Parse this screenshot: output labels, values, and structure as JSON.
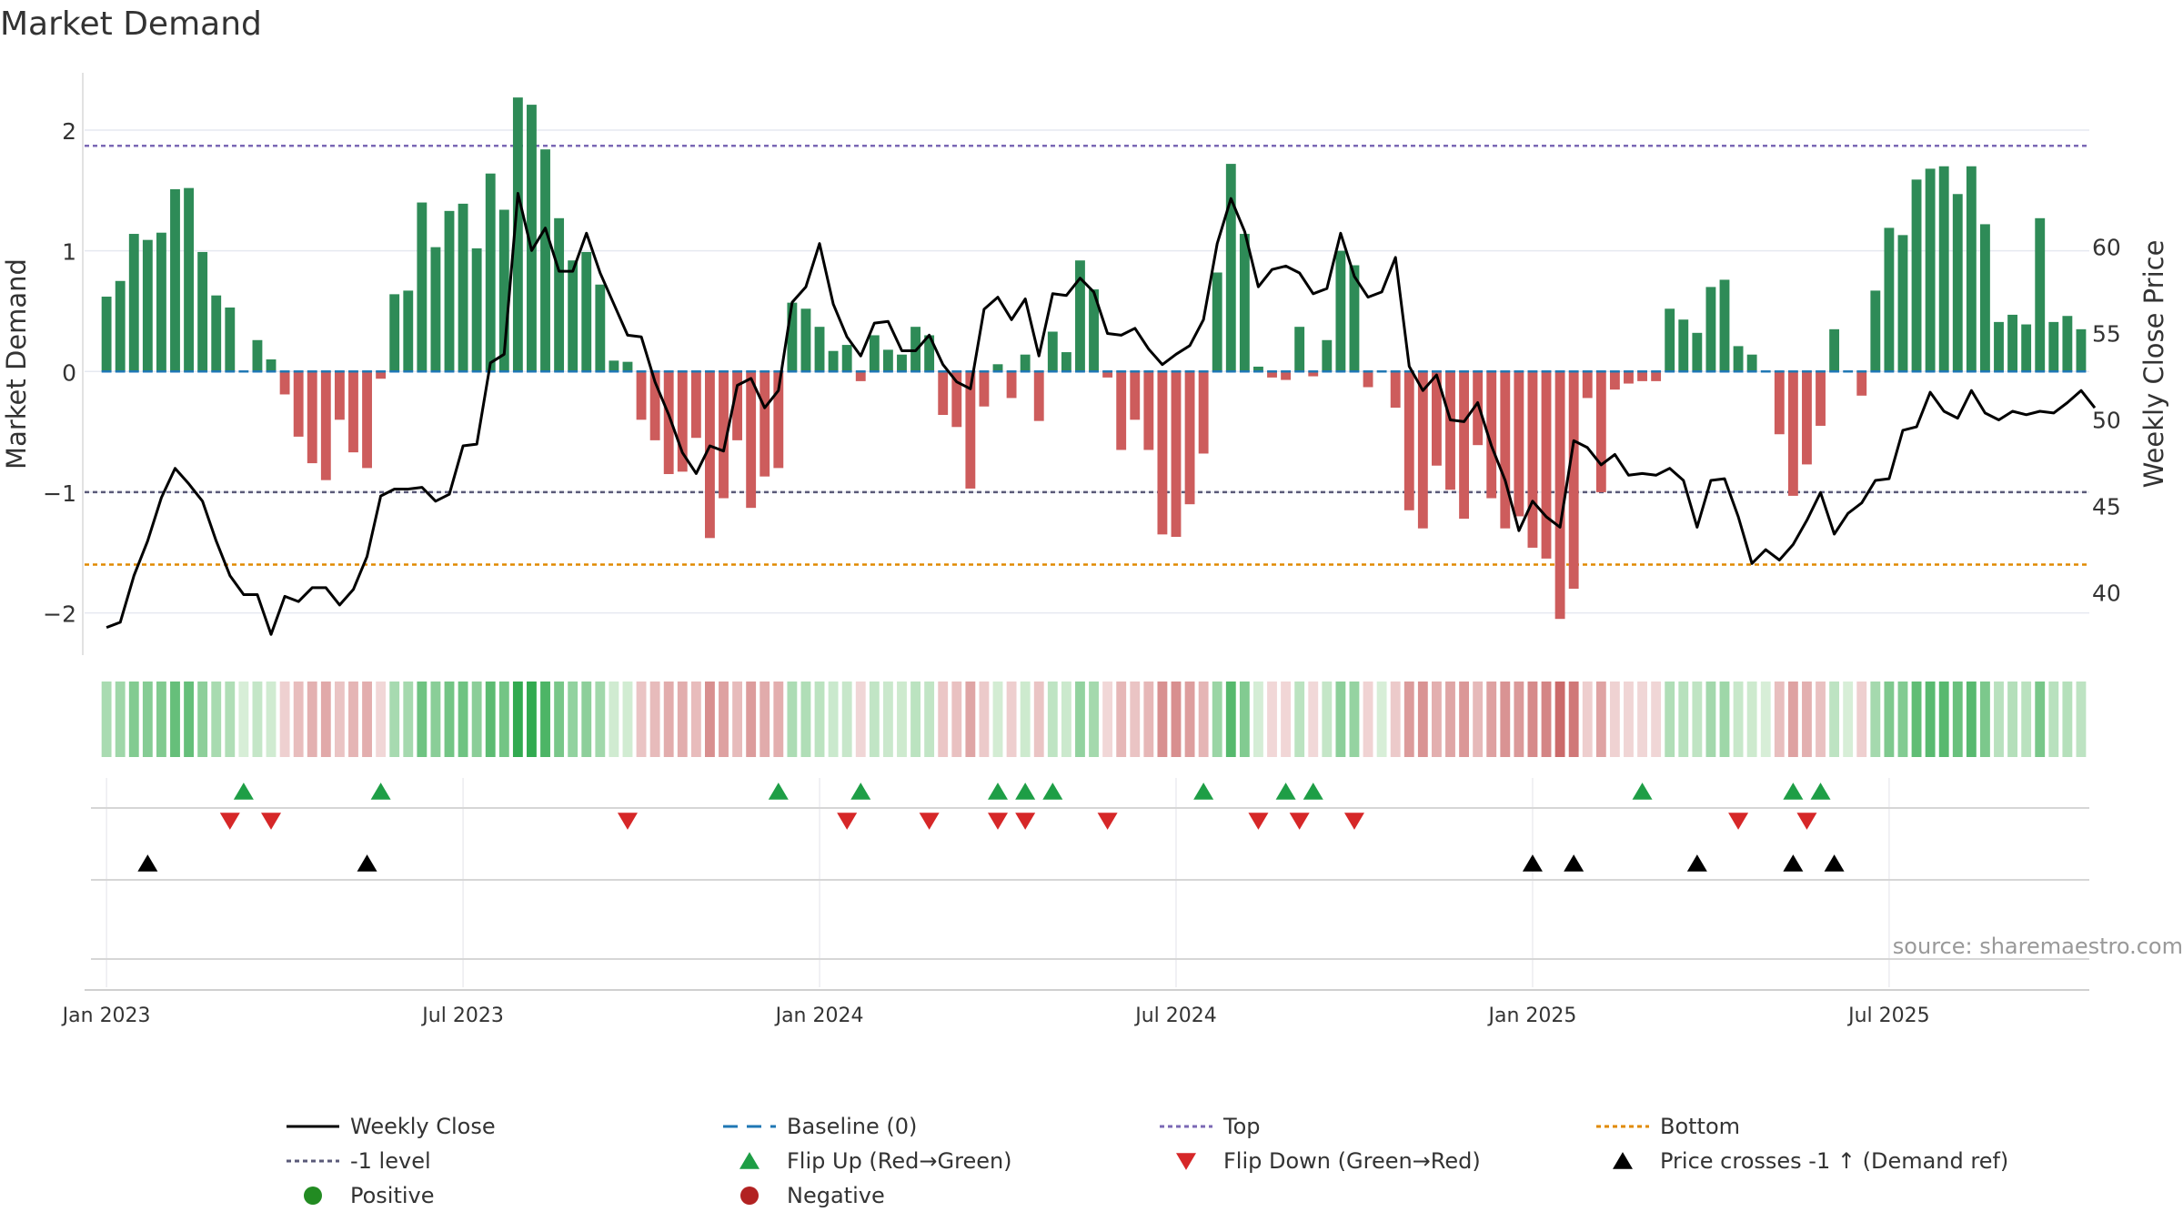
{
  "chart_data": {
    "type": "bar",
    "title": "Market Demand",
    "ylabel_left": "Market Demand",
    "ylabel_right": "Weekly Close Price",
    "ylim_left": [
      -2.35,
      2.55
    ],
    "ylim_right": [
      36.4,
      70.6
    ],
    "yticks_left": [
      2,
      1,
      0,
      -1,
      -2
    ],
    "ytick_labels_left": [
      "2",
      "1",
      "0",
      "−1",
      "−2"
    ],
    "yticks_right": [
      60,
      55,
      50,
      45,
      40
    ],
    "ytick_labels_right": [
      "60",
      "55",
      "50",
      "45",
      "40"
    ],
    "x_range": [
      -1.6,
      144.6
    ],
    "x_ticks": [
      {
        "x": 0,
        "label": "Jan 2023"
      },
      {
        "x": 26,
        "label": "Jul 2023"
      },
      {
        "x": 52,
        "label": "Jan 2024"
      },
      {
        "x": 78,
        "label": "Jul 2024"
      },
      {
        "x": 104,
        "label": "Jan 2025"
      },
      {
        "x": 130,
        "label": "Jul 2025"
      }
    ],
    "reference_lines": {
      "top": 1.87,
      "bottom": -1.6,
      "minus_one_level": -1.0,
      "baseline": 0
    },
    "market_demand": [
      0.62,
      0.75,
      1.14,
      1.09,
      1.15,
      1.51,
      1.52,
      0.99,
      0.63,
      0.53,
      0.0,
      0.26,
      0.1,
      -0.19,
      -0.54,
      -0.76,
      -0.9,
      -0.4,
      -0.67,
      -0.8,
      -0.06,
      0.64,
      0.67,
      1.4,
      1.03,
      1.33,
      1.39,
      1.02,
      1.64,
      1.34,
      2.27,
      2.21,
      1.84,
      1.27,
      0.92,
      0.99,
      0.72,
      0.09,
      0.08,
      -0.4,
      -0.57,
      -0.85,
      -0.83,
      -0.55,
      -1.38,
      -1.05,
      -0.57,
      -1.13,
      -0.87,
      -0.8,
      0.57,
      0.52,
      0.37,
      0.17,
      0.22,
      -0.08,
      0.3,
      0.18,
      0.14,
      0.37,
      0.3,
      -0.36,
      -0.46,
      -0.97,
      -0.29,
      0.06,
      -0.22,
      0.14,
      -0.41,
      0.33,
      0.16,
      0.92,
      0.68,
      -0.05,
      -0.65,
      -0.4,
      -0.65,
      -1.35,
      -1.37,
      -1.1,
      -0.68,
      0.82,
      1.72,
      1.14,
      0.04,
      -0.05,
      -0.07,
      0.37,
      -0.04,
      0.26,
      1.0,
      0.88,
      -0.13,
      0.0,
      -0.3,
      -1.15,
      -1.3,
      -0.78,
      -0.98,
      -1.22,
      -0.61,
      -1.05,
      -1.3,
      -1.2,
      -1.46,
      -1.55,
      -2.05,
      -1.8,
      -0.22,
      -1.0,
      -0.15,
      -0.1,
      -0.08,
      -0.08,
      0.52,
      0.43,
      0.32,
      0.7,
      0.76,
      0.21,
      0.14,
      0.0,
      -0.52,
      -1.03,
      -0.77,
      -0.45,
      0.35,
      0.0,
      -0.2,
      0.67,
      1.19,
      1.13,
      1.59,
      1.68,
      1.7,
      1.47,
      1.7,
      1.22,
      0.41,
      0.47,
      0.39,
      1.27,
      0.41,
      0.46,
      0.35
    ],
    "weekly_close": [
      38.0,
      38.3,
      41.0,
      43.0,
      45.5,
      47.2,
      46.3,
      45.3,
      43.0,
      41.0,
      39.9,
      39.9,
      37.6,
      39.8,
      39.5,
      40.3,
      40.3,
      39.3,
      40.2,
      42.1,
      45.6,
      46.0,
      46.0,
      46.1,
      45.3,
      45.7,
      48.5,
      48.6,
      53.3,
      53.8,
      63.1,
      59.8,
      61.1,
      58.6,
      58.6,
      60.8,
      58.5,
      56.7,
      54.9,
      54.8,
      52.2,
      50.3,
      48.1,
      46.9,
      48.5,
      48.2,
      52.0,
      52.4,
      50.7,
      51.7,
      56.8,
      57.7,
      60.2,
      56.7,
      54.8,
      53.7,
      55.6,
      55.7,
      54.0,
      54.0,
      54.9,
      53.2,
      52.2,
      51.8,
      56.4,
      57.1,
      55.8,
      57.0,
      53.7,
      57.3,
      57.2,
      58.2,
      57.4,
      55.0,
      54.9,
      55.3,
      54.1,
      53.2,
      53.8,
      54.3,
      55.8,
      60.2,
      62.8,
      60.9,
      57.7,
      58.7,
      58.9,
      58.5,
      57.3,
      57.6,
      60.8,
      58.3,
      57.1,
      57.4,
      59.4,
      53.1,
      51.7,
      52.6,
      50.0,
      49.9,
      51.0,
      48.5,
      46.5,
      43.6,
      45.3,
      44.4,
      43.8,
      48.8,
      48.4,
      47.4,
      48.0,
      46.8,
      46.9,
      46.8,
      47.2,
      46.5,
      43.8,
      46.5,
      46.6,
      44.4,
      41.7,
      42.5,
      41.9,
      42.8,
      44.2,
      45.8,
      43.4,
      44.6,
      45.2,
      46.5,
      46.6,
      49.4,
      49.6,
      51.6,
      50.5,
      50.1,
      51.7,
      50.4,
      50.0,
      50.5,
      50.3,
      50.5,
      50.4,
      51.0,
      51.7,
      50.7
    ],
    "flip_up_weeks": [
      10,
      20,
      49,
      55,
      65,
      67,
      69,
      80,
      86,
      88,
      112,
      123,
      125
    ],
    "flip_down_weeks": [
      9,
      12,
      38,
      54,
      60,
      65,
      67,
      73,
      84,
      87,
      91,
      119,
      124
    ],
    "price_cross_weeks": [
      3,
      19,
      104,
      107,
      116,
      123,
      126
    ],
    "source_text": "source: sharemaestro.com",
    "legend": [
      {
        "key": "close",
        "label": "Weekly Close"
      },
      {
        "key": "baseline",
        "label": "Baseline (0)"
      },
      {
        "key": "top",
        "label": "Top"
      },
      {
        "key": "bottom",
        "label": "Bottom"
      },
      {
        "key": "level",
        "label": "-1 level"
      },
      {
        "key": "flip_up",
        "label": "Flip Up (Red→Green)"
      },
      {
        "key": "flip_down",
        "label": "Flip Down (Green→Red)"
      },
      {
        "key": "cross",
        "label": "Price crosses -1 ↑ (Demand ref)"
      },
      {
        "key": "positive",
        "label": "Positive"
      },
      {
        "key": "negative",
        "label": "Negative"
      }
    ],
    "colors": {
      "positive_bar": "#2e8b57",
      "negative_bar": "#cd5c5c",
      "close_line": "#000000",
      "baseline": "#1f77b4",
      "top_line": "#7b68b5",
      "bottom_line": "#e08a00",
      "level_line": "#5a5a78",
      "flip_up": "#1e9e46",
      "flip_down": "#d62728",
      "cross": "#000000",
      "positive_dot": "#228b22",
      "negative_dot": "#b22222",
      "grid": "#e6e9f0",
      "text": "#333333"
    }
  }
}
